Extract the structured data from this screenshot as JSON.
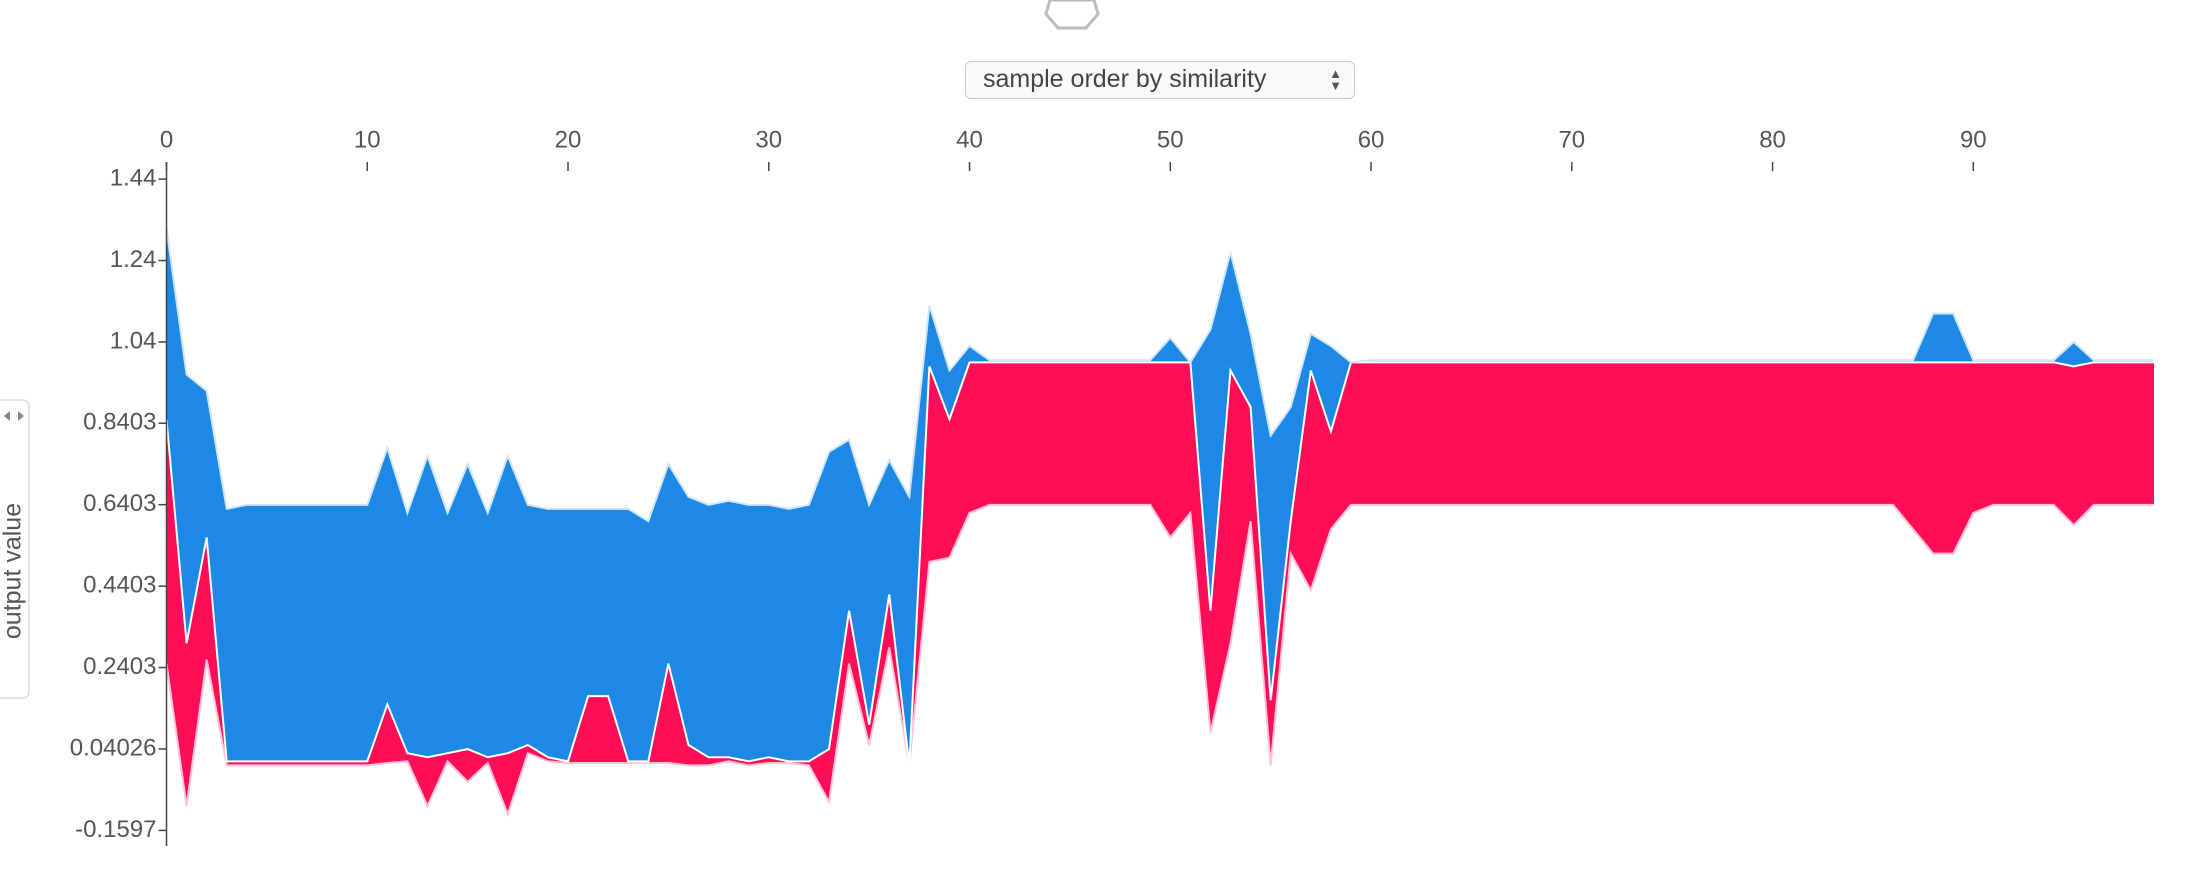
{
  "x_order_select": "sample order by similarity",
  "chart_data": {
    "type": "band",
    "ylabel": "output value",
    "x": [
      0,
      1,
      2,
      3,
      4,
      5,
      6,
      7,
      8,
      9,
      10,
      11,
      12,
      13,
      14,
      15,
      16,
      17,
      18,
      19,
      20,
      21,
      22,
      23,
      24,
      25,
      26,
      27,
      28,
      29,
      30,
      31,
      32,
      33,
      34,
      35,
      36,
      37,
      38,
      39,
      40,
      41,
      42,
      43,
      44,
      45,
      46,
      47,
      48,
      49,
      50,
      51,
      52,
      53,
      54,
      55,
      56,
      57,
      58,
      59,
      60,
      61,
      62,
      63,
      64,
      65,
      66,
      67,
      68,
      69,
      70,
      71,
      72,
      73,
      74,
      75,
      76,
      77,
      78,
      79,
      80,
      81,
      82,
      83,
      84,
      85,
      86,
      87,
      88,
      89,
      90,
      91,
      92,
      93,
      94,
      95,
      96,
      97,
      98,
      99
    ],
    "xlim": [
      0,
      99
    ],
    "xticks": [
      0,
      10,
      20,
      30,
      40,
      50,
      60,
      70,
      80,
      90
    ],
    "ylim": [
      -0.198,
      1.482
    ],
    "yticks": [
      1.44,
      1.24,
      1.04,
      0.8403,
      0.6403,
      0.4403,
      0.2403,
      0.04026,
      -0.1597
    ],
    "fills": [
      "#ff0d57",
      "#1e88e5"
    ],
    "series": [
      {
        "color": "#ffc3d5",
        "values": [
          0.25,
          -0.1,
          0.26,
          0,
          0,
          0,
          0,
          0,
          0,
          0,
          0,
          0.006,
          0.01,
          -0.1,
          0.01,
          -0.04,
          0.006,
          -0.12,
          0.03,
          0.01,
          0.006,
          0.006,
          0.006,
          0.006,
          0.006,
          0.006,
          0,
          0,
          0.01,
          0,
          0.006,
          0.006,
          0,
          -0.09,
          0.25,
          0.05,
          0.29,
          0,
          0.5,
          0.51,
          0.62,
          0.64,
          0.64,
          0.64,
          0.64,
          0.64,
          0.64,
          0.64,
          0.64,
          0.64,
          0.56,
          0.62,
          0.08,
          0.3,
          0.6,
          0,
          0.52,
          0.43,
          0.58,
          0.64,
          0.64,
          0.64,
          0.64,
          0.64,
          0.64,
          0.64,
          0.64,
          0.64,
          0.64,
          0.64,
          0.64,
          0.64,
          0.64,
          0.64,
          0.64,
          0.64,
          0.64,
          0.64,
          0.64,
          0.64,
          0.64,
          0.64,
          0.64,
          0.64,
          0.64,
          0.64,
          0.64,
          0.58,
          0.52,
          0.52,
          0.62,
          0.64,
          0.64,
          0.64,
          0.64,
          0.59,
          0.64,
          0.64,
          0.64,
          0.64
        ]
      },
      {
        "color": "#ffffff",
        "values": [
          0.85,
          0.3,
          0.56,
          0.01,
          0.01,
          0.01,
          0.01,
          0.01,
          0.01,
          0.01,
          0.01,
          0.15,
          0.03,
          0.02,
          0.03,
          0.04,
          0.02,
          0.03,
          0.05,
          0.02,
          0.01,
          0.17,
          0.17,
          0.01,
          0.01,
          0.25,
          0.05,
          0.02,
          0.02,
          0.01,
          0.02,
          0.01,
          0.01,
          0.04,
          0.38,
          0.1,
          0.42,
          0,
          0.98,
          0.85,
          0.99,
          0.99,
          0.99,
          0.99,
          0.99,
          0.99,
          0.99,
          0.99,
          0.99,
          0.99,
          0.99,
          0.99,
          0.38,
          0.97,
          0.88,
          0.16,
          0.6,
          0.97,
          0.82,
          0.99,
          0.99,
          0.99,
          0.99,
          0.99,
          0.99,
          0.99,
          0.99,
          0.99,
          0.99,
          0.99,
          0.99,
          0.99,
          0.99,
          0.99,
          0.99,
          0.99,
          0.99,
          0.99,
          0.99,
          0.99,
          0.99,
          0.99,
          0.99,
          0.99,
          0.99,
          0.99,
          0.99,
          0.99,
          0.99,
          0.99,
          0.99,
          0.99,
          0.99,
          0.99,
          0.99,
          0.98,
          0.99,
          0.99,
          0.99,
          0.99
        ]
      },
      {
        "color": "#d1e6fa",
        "values": [
          1.32,
          0.96,
          0.92,
          0.63,
          0.64,
          0.64,
          0.64,
          0.64,
          0.64,
          0.64,
          0.64,
          0.78,
          0.62,
          0.76,
          0.62,
          0.74,
          0.62,
          0.76,
          0.64,
          0.63,
          0.63,
          0.63,
          0.63,
          0.63,
          0.6,
          0.74,
          0.66,
          0.64,
          0.65,
          0.64,
          0.64,
          0.63,
          0.64,
          0.77,
          0.8,
          0.64,
          0.75,
          0.66,
          1.13,
          0.97,
          1.03,
          0.995,
          0.995,
          0.995,
          0.995,
          0.995,
          0.995,
          0.995,
          0.995,
          0.995,
          1.05,
          0.99,
          1.07,
          1.26,
          1.06,
          0.81,
          0.88,
          1.06,
          1.03,
          0.99,
          0.995,
          0.995,
          0.995,
          0.995,
          0.995,
          0.995,
          0.995,
          0.995,
          0.995,
          0.995,
          0.995,
          0.995,
          0.995,
          0.995,
          0.995,
          0.995,
          0.995,
          0.995,
          0.995,
          0.995,
          0.995,
          0.995,
          0.995,
          0.995,
          0.995,
          0.995,
          0.995,
          0.995,
          1.11,
          1.11,
          0.995,
          0.995,
          0.995,
          0.995,
          0.995,
          1.04,
          0.995,
          0.995,
          0.995,
          0.995
        ]
      }
    ]
  }
}
